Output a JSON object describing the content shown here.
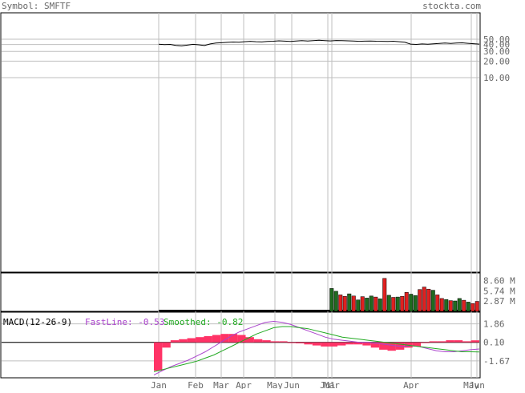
{
  "header": {
    "symbol_label": "Symbol: SMFTF",
    "site_label": "stockta.com"
  },
  "colors": {
    "background": "#ffffff",
    "text": "#666666",
    "grid": "#bfbfbf",
    "price_line": "#000000",
    "volume_up": "#1f6b1f",
    "volume_down": "#e02020",
    "macd_fast": "#aa44cc",
    "macd_smooth": "#22aa22",
    "macd_hist": "#ff3366",
    "macd_label": "#000000"
  },
  "x_axis": {
    "tick_labels": [
      "Jan",
      "Feb",
      "Mar",
      "Apr",
      "May",
      "Jun",
      "Jul",
      "Mar",
      "Apr",
      "May",
      "Jun"
    ]
  },
  "chart_data": [
    {
      "type": "line",
      "panel": "price",
      "scale": "log",
      "tick_labels": [
        "50.00",
        "40.00",
        "30.00",
        "20.00",
        "10.00"
      ],
      "ticks": [
        50,
        40,
        30,
        20,
        10
      ],
      "series": [
        {
          "values": [
            40.5,
            39.8,
            40.2,
            38.6,
            37.9,
            39.0,
            40.3,
            39.5,
            38.4,
            41.0,
            42.5,
            43.2,
            43.8,
            44.5,
            44.0,
            45.1,
            45.8,
            45.0,
            44.6,
            45.5,
            46.0,
            46.8,
            46.2,
            45.7,
            46.4,
            47.0,
            46.5,
            47.3,
            47.8,
            47.2,
            46.6,
            47.4,
            47.0,
            46.8,
            46.3,
            45.9,
            46.1,
            46.5,
            46.0,
            45.8,
            45.6,
            46.0,
            45.1,
            44.0,
            40.8,
            40.2,
            41.0,
            40.5,
            41.2,
            42.0,
            42.5,
            41.8,
            42.6,
            43.0,
            42.2,
            41.5,
            40.8
          ]
        }
      ]
    },
    {
      "type": "bar",
      "panel": "volume",
      "tick_labels": [
        "8.60 M",
        "5.74 M",
        "2.87 M"
      ],
      "ticks": [
        8.6,
        5.74,
        2.87
      ],
      "ylim": [
        0,
        10.5
      ],
      "values": [
        6.4,
        5.6,
        4.6,
        4.2,
        4.9,
        4.3,
        3.2,
        4.1,
        3.7,
        4.3,
        4.0,
        3.5,
        9.2,
        4.5,
        3.9,
        4.0,
        4.2,
        5.3,
        4.8,
        4.4,
        6.1,
        6.8,
        6.2,
        5.9,
        4.6,
        3.6,
        3.3,
        3.0,
        2.9,
        3.6,
        3.1,
        2.6,
        2.2,
        2.8
      ],
      "up": [
        true,
        true,
        false,
        false,
        true,
        false,
        true,
        false,
        true,
        true,
        false,
        true,
        false,
        true,
        false,
        true,
        false,
        false,
        true,
        true,
        false,
        false,
        false,
        true,
        false,
        false,
        true,
        false,
        true,
        true,
        false,
        true,
        false,
        false
      ]
    },
    {
      "type": "line",
      "panel": "macd",
      "title": "MACD(12-26-9)",
      "fast_label": "FastLine: -0.53",
      "smooth_label": "Smoothed: -0.82",
      "tick_labels": [
        "1.86",
        "0.10",
        "-1.67"
      ],
      "ticks": [
        1.86,
        0.1,
        -1.67
      ],
      "ylim": [
        -3.2,
        2.9
      ],
      "zero": 0.1,
      "series": [
        {
          "name": "FastLine",
          "values": [
            -3.0,
            -2.6,
            -2.2,
            -1.9,
            -1.6,
            -1.2,
            -0.8,
            -0.3,
            0.2,
            0.7,
            1.1,
            1.4,
            1.7,
            2.0,
            2.1,
            2.0,
            1.8,
            1.5,
            1.2,
            0.9,
            0.6,
            0.4,
            0.3,
            0.2,
            0.1,
            0.1,
            0.0,
            -0.1,
            -0.2,
            -0.3,
            -0.2,
            -0.3,
            -0.5,
            -0.7,
            -0.8,
            -0.8,
            -0.7,
            -0.6,
            -0.53
          ]
        },
        {
          "name": "Smoothed",
          "values": [
            -2.7,
            -2.5,
            -2.3,
            -2.1,
            -1.9,
            -1.7,
            -1.4,
            -1.1,
            -0.7,
            -0.3,
            0.1,
            0.5,
            0.9,
            1.2,
            1.5,
            1.6,
            1.6,
            1.5,
            1.4,
            1.2,
            1.0,
            0.8,
            0.6,
            0.5,
            0.4,
            0.3,
            0.2,
            0.1,
            0.0,
            -0.1,
            -0.2,
            -0.3,
            -0.4,
            -0.5,
            -0.6,
            -0.7,
            -0.8,
            -0.8,
            -0.82
          ]
        },
        {
          "name": "Histogram",
          "values": [
            -2.6,
            -0.4,
            0.3,
            0.4,
            0.5,
            0.6,
            0.7,
            0.8,
            0.9,
            0.9,
            0.8,
            0.6,
            0.4,
            0.3,
            0.2,
            0.2,
            0.1,
            0.0,
            -0.1,
            -0.2,
            -0.3,
            -0.3,
            -0.2,
            -0.1,
            -0.1,
            -0.2,
            -0.4,
            -0.6,
            -0.7,
            -0.6,
            -0.4,
            -0.3,
            0.1,
            0.2,
            0.2,
            0.3,
            0.3,
            0.2,
            0.29
          ]
        }
      ]
    }
  ]
}
